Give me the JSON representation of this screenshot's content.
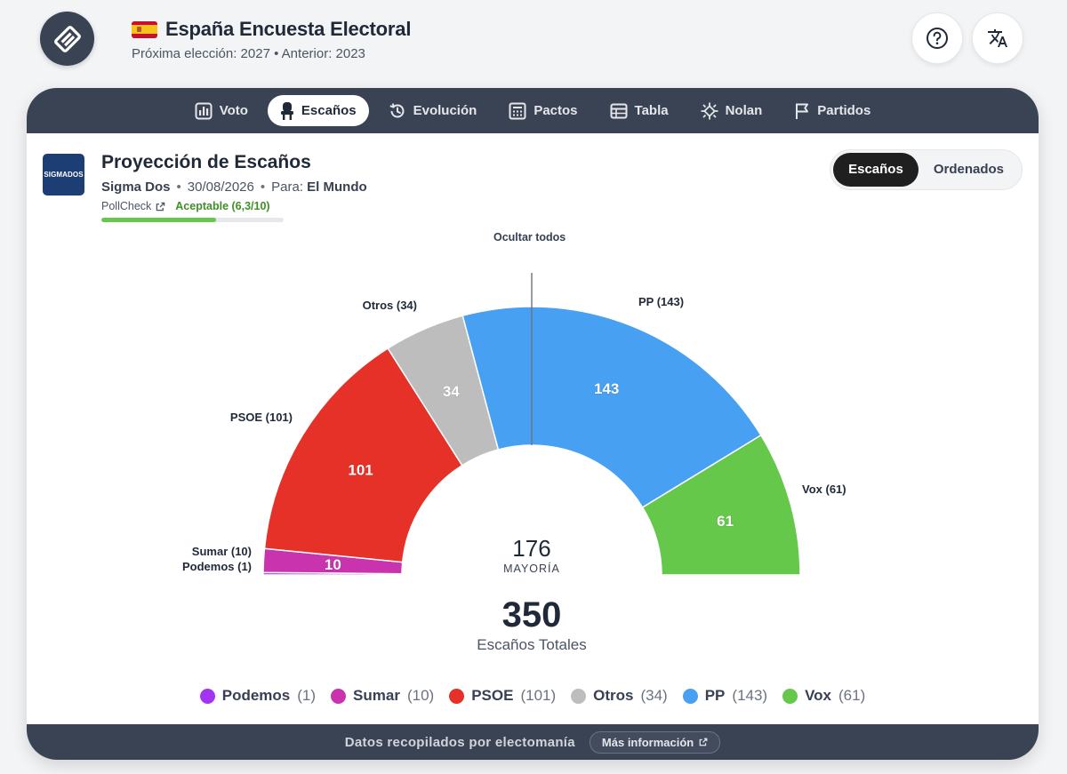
{
  "header": {
    "title": "España Encuesta Electoral",
    "subtitle": "Próxima elección: 2027 • Anterior: 2023",
    "flag_icon": "spain-flag-icon",
    "help_icon": "help-circle-icon",
    "translate_icon": "translate-icon"
  },
  "tabs": [
    {
      "label": "Voto",
      "icon": "bar-chart-icon",
      "active": false
    },
    {
      "label": "Escaños",
      "icon": "seat-icon",
      "active": true
    },
    {
      "label": "Evolución",
      "icon": "history-icon",
      "active": false
    },
    {
      "label": "Pactos",
      "icon": "calculator-icon",
      "active": false
    },
    {
      "label": "Tabla",
      "icon": "table-icon",
      "active": false
    },
    {
      "label": "Nolan",
      "icon": "nolan-icon",
      "active": false
    },
    {
      "label": "Partidos",
      "icon": "flag-icon",
      "active": false
    }
  ],
  "poll": {
    "logo_text": "SIGMADOS",
    "title": "Proyección de Escaños",
    "pollster": "Sigma Dos",
    "date": "30/08/2026",
    "for_label": "Para:",
    "media": "El Mundo",
    "pollcheck_label": "PollCheck",
    "grade_label": "Aceptable (6,3/10)",
    "grade_score": 6.3,
    "grade_max": 10
  },
  "view_toggle": {
    "options": [
      "Escaños",
      "Ordenados"
    ],
    "active": "Escaños"
  },
  "hide_all_label": "Ocultar todos",
  "chart_data": {
    "type": "pie",
    "variant": "hemicycle",
    "total_seats": 350,
    "total_label": "Escaños Totales",
    "majority": 176,
    "majority_label": "MAYORÍA",
    "series": [
      {
        "name": "Podemos",
        "value": 1,
        "color": "#a334f2",
        "label": "Podemos (1)"
      },
      {
        "name": "Sumar",
        "value": 10,
        "color": "#c934ae",
        "label": "Sumar (10)"
      },
      {
        "name": "PSOE",
        "value": 101,
        "color": "#e53127",
        "label": "PSOE (101)"
      },
      {
        "name": "Otros",
        "value": 34,
        "color": "#bdbdbd",
        "label": "Otros (34)"
      },
      {
        "name": "PP",
        "value": 143,
        "color": "#48a0f2",
        "label": "PP (143)"
      },
      {
        "name": "Vox",
        "value": 61,
        "color": "#65c84b",
        "label": "Vox (61)"
      }
    ]
  },
  "footer": {
    "text": "Datos recopilados por electomanía",
    "button_label": "Más información"
  }
}
